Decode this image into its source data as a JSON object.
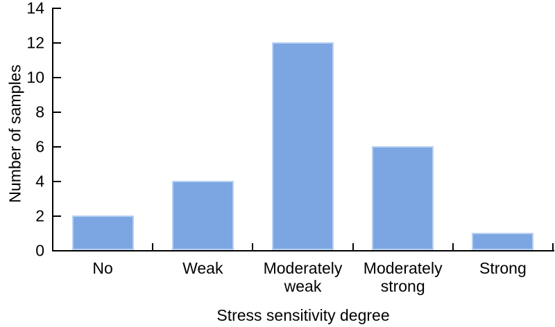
{
  "chart_data": {
    "type": "bar",
    "categories": [
      "No",
      "Weak",
      "Moderately\nweak",
      "Moderately\nstrong",
      "Strong"
    ],
    "values": [
      2,
      4,
      12,
      6,
      1
    ],
    "title": "",
    "xlabel": "Stress sensitivity degree",
    "ylabel": "Number of samples",
    "ylim": [
      0,
      14
    ],
    "yticks": [
      0,
      2,
      4,
      6,
      8,
      10,
      12,
      14
    ],
    "grid": false,
    "legend_position": "none",
    "spines": [
      "left",
      "bottom"
    ],
    "tick_direction": "in"
  },
  "colors": {
    "bar_fill": "#7CA6E2",
    "bar_edge": "#B9D1F1",
    "axis": "#000000",
    "text": "#000000",
    "background": "#FFFFFF"
  }
}
